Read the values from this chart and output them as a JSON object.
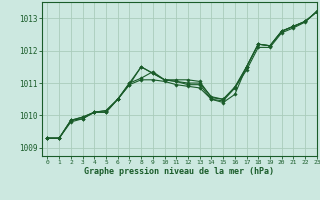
{
  "title": "Graphe pression niveau de la mer (hPa)",
  "background_color": "#cce8e0",
  "grid_color": "#aaccbb",
  "line_color": "#1a5c2a",
  "marker_color": "#1a5c2a",
  "xlim": [
    -0.5,
    23
  ],
  "ylim": [
    1008.75,
    1013.5
  ],
  "yticks": [
    1009,
    1010,
    1011,
    1012,
    1013
  ],
  "xticks": [
    0,
    1,
    2,
    3,
    4,
    5,
    6,
    7,
    8,
    9,
    10,
    11,
    12,
    13,
    14,
    15,
    16,
    17,
    18,
    19,
    20,
    21,
    22,
    23
  ],
  "series": [
    [
      1009.3,
      1009.3,
      1009.85,
      1009.95,
      1010.1,
      1010.15,
      1010.5,
      1011.0,
      1011.5,
      1011.3,
      1011.1,
      1011.1,
      1011.1,
      1011.05,
      1010.55,
      1010.5,
      1010.85,
      1011.5,
      1012.2,
      1012.15,
      1012.6,
      1012.75,
      1012.9,
      1013.2
    ],
    [
      1009.3,
      1009.3,
      1009.85,
      1009.95,
      1010.1,
      1010.15,
      1010.5,
      1011.0,
      1011.15,
      1011.35,
      1011.1,
      1011.05,
      1011.0,
      1011.0,
      1010.58,
      1010.5,
      1010.88,
      1011.5,
      1012.2,
      1012.15,
      1012.6,
      1012.75,
      1012.9,
      1013.2
    ],
    [
      1009.3,
      1009.3,
      1009.85,
      1009.9,
      1010.1,
      1010.1,
      1010.5,
      1010.95,
      1011.5,
      1011.3,
      1011.1,
      1011.05,
      1010.95,
      1010.95,
      1010.5,
      1010.45,
      1010.85,
      1011.4,
      1012.1,
      1012.1,
      1012.55,
      1012.7,
      1012.88,
      1013.22
    ],
    [
      1009.3,
      1009.3,
      1009.8,
      1009.9,
      1010.1,
      1010.1,
      1010.5,
      1010.95,
      1011.1,
      1011.1,
      1011.05,
      1010.95,
      1010.9,
      1010.85,
      1010.5,
      1010.4,
      1010.65,
      1011.5,
      1012.2,
      1012.15,
      1012.6,
      1012.75,
      1012.9,
      1013.2
    ]
  ]
}
